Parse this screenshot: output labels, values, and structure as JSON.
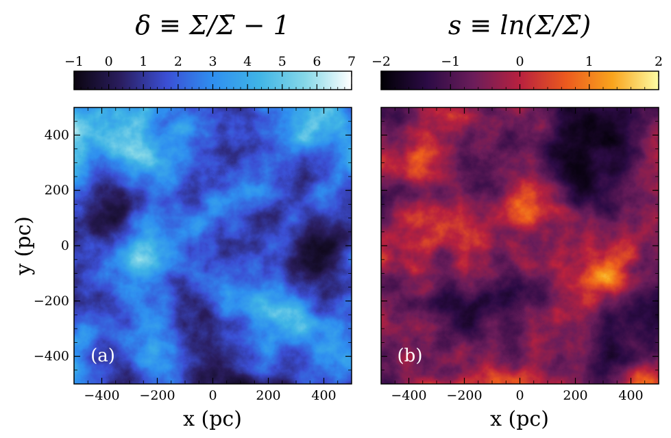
{
  "chart_data": [
    {
      "type": "heatmap",
      "panel_label": "(a)",
      "title": "δ ≡ Σ/Σ̄ − 1",
      "colorbar": {
        "ticks": [
          -1,
          0,
          1,
          2,
          3,
          4,
          5,
          6,
          7
        ],
        "tick_labels": [
          "−1",
          "0",
          "1",
          "2",
          "3",
          "4",
          "5",
          "6",
          "7"
        ],
        "range": [
          -1,
          7
        ],
        "colormap": [
          "#0b0510",
          "#2a1d5e",
          "#3b4fd4",
          "#2f8ff0",
          "#40b4e6",
          "#86d8e8",
          "#ffffff"
        ]
      },
      "xlabel": "x (pc)",
      "ylabel": "y (pc)",
      "xlim": [
        -500,
        500
      ],
      "ylim": [
        -500,
        500
      ],
      "xticks": [
        -400,
        -200,
        0,
        200,
        400
      ],
      "xtick_labels": [
        "−400",
        "−200",
        "0",
        "200",
        "400"
      ],
      "yticks": [
        -400,
        -200,
        0,
        200,
        400
      ],
      "ytick_labels": [
        "−400",
        "−200",
        "0",
        "200",
        "400"
      ]
    },
    {
      "type": "heatmap",
      "panel_label": "(b)",
      "title": "s ≡ ln(Σ/Σ̄)",
      "colorbar": {
        "ticks": [
          -2,
          -1,
          0,
          1,
          2
        ],
        "tick_labels": [
          "−2",
          "−1",
          "0",
          "1",
          "2"
        ],
        "range": [
          -2,
          2
        ],
        "colormap": [
          "#000004",
          "#2c0b45",
          "#6b1d5a",
          "#b8213f",
          "#ec5a1e",
          "#f9a41d",
          "#fcfda4"
        ]
      },
      "xlabel": "x (pc)",
      "xlim": [
        -500,
        500
      ],
      "ylim": [
        -500,
        500
      ],
      "xticks": [
        -400,
        -200,
        0,
        200,
        400
      ],
      "xtick_labels": [
        "−400",
        "−200",
        "0",
        "200",
        "400"
      ]
    }
  ]
}
